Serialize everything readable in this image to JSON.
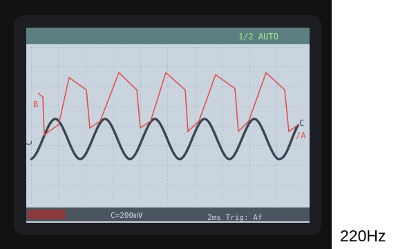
{
  "screen": {
    "status": "1/2 AUTO",
    "trace_labels": {
      "left_top": "B",
      "left_side": "C",
      "right_top": "C",
      "right_bottom": "/A"
    },
    "footer": {
      "scale": "C=200mV",
      "timebase": "2ms Trig: Af"
    }
  },
  "caption": "220Hz"
}
